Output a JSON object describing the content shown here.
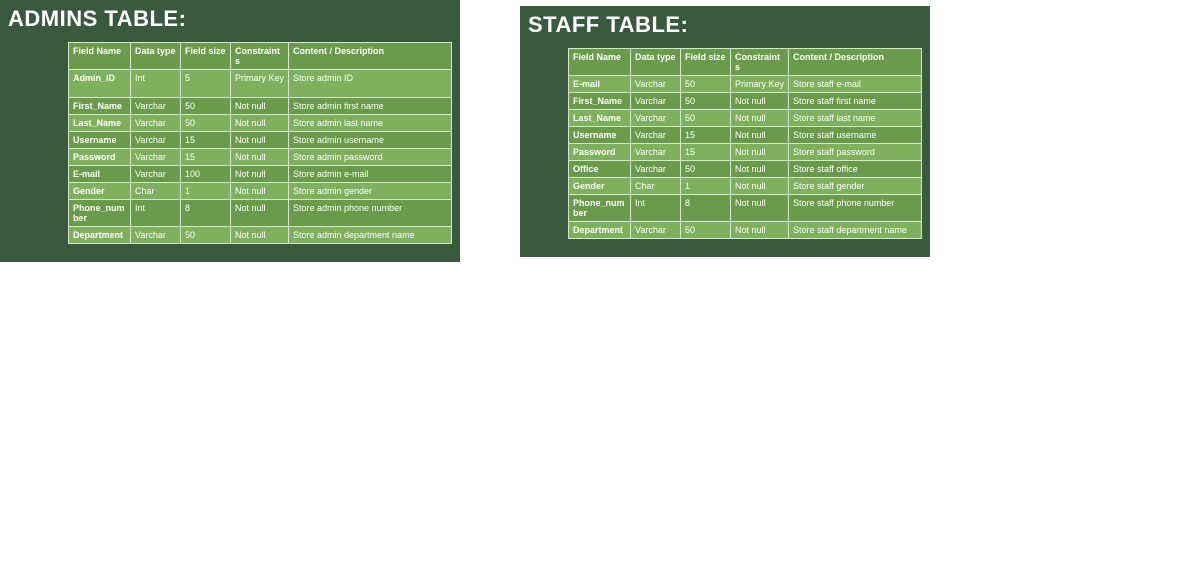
{
  "colors": {
    "panel_bg": "#3a5a40",
    "header_bg": "#6a9b4a",
    "row_light": "#7fb05e",
    "row_dark": "#6a9b4a",
    "border": "#d7e6cf",
    "text": "#ffffff"
  },
  "typography": {
    "title_font": "Arial Black",
    "title_size_pt": 17,
    "body_font": "Arial",
    "body_size_pt": 7
  },
  "left": {
    "title": "ADMINS TABLE:",
    "columns": [
      "Field Name",
      "Data type",
      "Field size",
      "Constraints",
      "Content / Description"
    ],
    "rows": [
      {
        "shade": "light",
        "cells": [
          "Admin_ID",
          "Int",
          "5",
          "Primary Key",
          "Store admin ID"
        ],
        "row_height": "tall"
      },
      {
        "shade": "dark",
        "cells": [
          "First_Name",
          "Varchar",
          "50",
          "Not null",
          "Store admin first name"
        ]
      },
      {
        "shade": "light",
        "cells": [
          "Last_Name",
          "Varchar",
          "50",
          "Not null",
          "Store admin last name"
        ]
      },
      {
        "shade": "dark",
        "cells": [
          "Username",
          "Varchar",
          "15",
          "Not null",
          "Store admin username"
        ]
      },
      {
        "shade": "light",
        "cells": [
          "Password",
          "Varchar",
          "15",
          "Not null",
          "Store admin password"
        ]
      },
      {
        "shade": "dark",
        "cells": [
          "E-mail",
          "Varchar",
          "100",
          "Not null",
          "Store admin e-mail"
        ],
        "row_height": "short"
      },
      {
        "shade": "light",
        "cells": [
          "Gender",
          "Char",
          "1",
          "Not null",
          "Store admin gender"
        ],
        "row_height": "short"
      },
      {
        "shade": "dark",
        "cells": [
          "Phone_number",
          "Int",
          "8",
          "Not null",
          "Store admin phone number"
        ]
      },
      {
        "shade": "light",
        "cells": [
          "Department",
          "Varchar",
          "50",
          "Not null",
          "Store admin department name"
        ]
      }
    ]
  },
  "right": {
    "title": "STAFF TABLE:",
    "columns": [
      "Field Name",
      "Data type",
      "Field size",
      "Constraints",
      "Content / Description"
    ],
    "rows": [
      {
        "shade": "light",
        "cells": [
          "E-mail",
          "Varchar",
          "50",
          "Primary Key",
          "Store staff e-mail"
        ]
      },
      {
        "shade": "dark",
        "cells": [
          "First_Name",
          "Varchar",
          "50",
          "Not null",
          "Store staff first name"
        ]
      },
      {
        "shade": "light",
        "cells": [
          "Last_Name",
          "Varchar",
          "50",
          "Not null",
          "Store staff last name"
        ]
      },
      {
        "shade": "dark",
        "cells": [
          "Username",
          "Varchar",
          "15",
          "Not null",
          "Store staff username"
        ]
      },
      {
        "shade": "light",
        "cells": [
          "Password",
          "Varchar",
          "15",
          "Not null",
          "Store staff password"
        ]
      },
      {
        "shade": "dark",
        "cells": [
          "Office",
          "Varchar",
          "50",
          "Not null",
          "Store staff office"
        ],
        "row_height": "short"
      },
      {
        "shade": "light",
        "cells": [
          "Gender",
          "Char",
          "1",
          "Not null",
          "Store staff gender"
        ],
        "row_height": "short"
      },
      {
        "shade": "dark",
        "cells": [
          "Phone_number",
          "Int",
          "8",
          "Not null",
          "Store staff phone number"
        ]
      },
      {
        "shade": "light",
        "cells": [
          "Department",
          "Varchar",
          "50",
          "Not null",
          "Store staff department name"
        ]
      }
    ]
  }
}
